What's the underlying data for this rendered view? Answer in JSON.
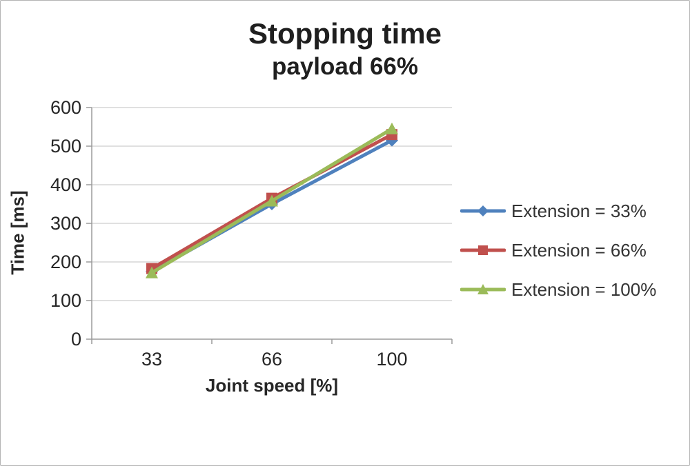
{
  "chart_data": {
    "type": "line",
    "title": "Stopping time",
    "subtitle": "payload 66%",
    "xlabel": "Joint speed [%]",
    "ylabel": "Time [ms]",
    "categories": [
      "33",
      "66",
      "100"
    ],
    "series": [
      {
        "name": "Extension = 33%",
        "values": [
          175,
          350,
          515
        ],
        "color": "#4f81bd",
        "marker": "diamond"
      },
      {
        "name": "Extension = 66%",
        "values": [
          183,
          365,
          530
        ],
        "color": "#c0504d",
        "marker": "square"
      },
      {
        "name": "Extension = 100%",
        "values": [
          172,
          358,
          545
        ],
        "color": "#9bbb59",
        "marker": "triangle"
      }
    ],
    "ylim": [
      0,
      600
    ],
    "yticks": [
      0,
      100,
      200,
      300,
      400,
      500,
      600
    ],
    "grid": true,
    "legend_position": "right",
    "axis_color": "#9b9b9b",
    "grid_color": "#d6d6d6",
    "text_color": "#262626"
  }
}
